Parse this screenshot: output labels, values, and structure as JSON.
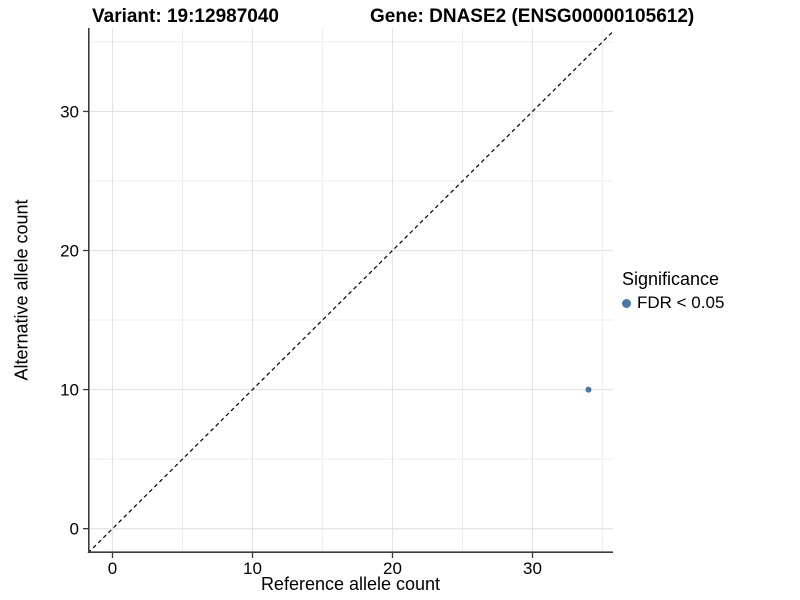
{
  "titles": {
    "variant": "Variant: 19:12987040",
    "gene": "Gene: DNASE2 (ENSG00000105612)"
  },
  "chart_data": {
    "type": "scatter",
    "title_left": "Variant: 19:12987040",
    "title_right": "Gene: DNASE2 (ENSG00000105612)",
    "xlabel": "Reference allele count",
    "ylabel": "Alternative allele count",
    "xlim": [
      -1.75,
      35.75
    ],
    "ylim": [
      -1.75,
      36.0
    ],
    "x_ticks": [
      0,
      10,
      20,
      30
    ],
    "y_ticks": [
      0,
      10,
      20,
      30
    ],
    "x_minor_ticks": [
      5,
      15,
      25,
      35
    ],
    "y_minor_ticks": [
      5,
      15,
      25,
      35
    ],
    "grid": true,
    "legend_position": "right",
    "abline": {
      "slope": 1,
      "intercept": 0,
      "style": "dashed",
      "color": "#000000"
    },
    "series": [
      {
        "name": "FDR < 0.05",
        "color": "#4878a8",
        "points": [
          {
            "x": 34,
            "y": 10
          }
        ],
        "point_radius": 3
      }
    ],
    "legend": {
      "title": "Significance",
      "entries": [
        {
          "label": "FDR < 0.05",
          "color": "#4878a8"
        }
      ]
    },
    "colors": {
      "axis_line": "#3c3c3c",
      "major_grid": "#e3e3e3",
      "minor_grid": "#eeeeee",
      "tick_text": "#000000"
    }
  }
}
